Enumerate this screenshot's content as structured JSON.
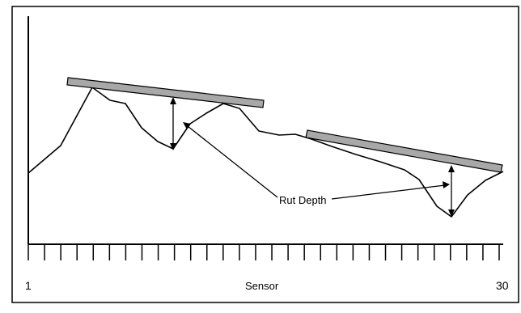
{
  "annotation": {
    "label": "Rut Depth"
  },
  "axis": {
    "xlabel": "Sensor",
    "start_label": "1",
    "end_label": "30",
    "sensor_count": 30
  },
  "colors": {
    "line": "#000000",
    "straightedge_fill": "#a8a8a8",
    "straightedge_stroke": "#000000",
    "background": "#ffffff"
  }
}
